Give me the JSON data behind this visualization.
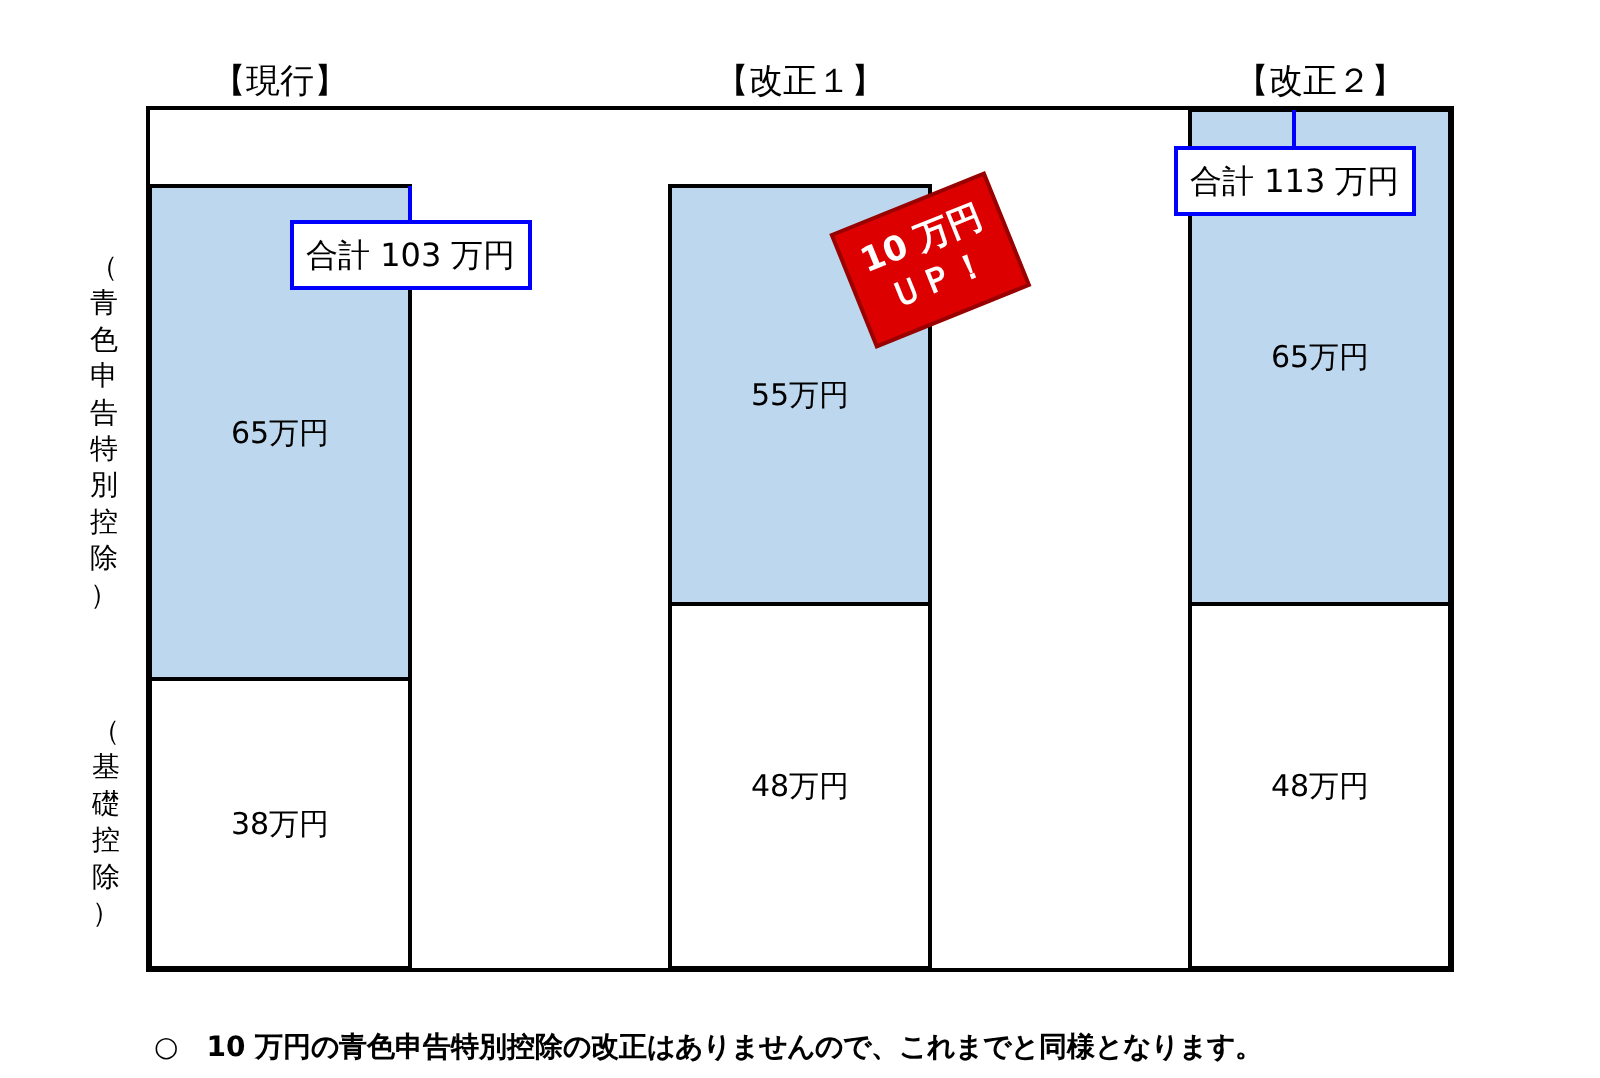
{
  "chart_data": {
    "type": "bar",
    "stacked": true,
    "categories": [
      "【現行】",
      "【改正１】",
      "【改正２】"
    ],
    "series": [
      {
        "name": "（基礎控除）",
        "color": "#ffffff",
        "values": [
          38,
          48,
          48
        ],
        "value_labels": [
          "38万円",
          "48万円",
          "48万円"
        ]
      },
      {
        "name": "（青色申告特別控除）",
        "color": "#bdd7ee",
        "values": [
          65,
          55,
          65
        ],
        "value_labels": [
          "65万円",
          "55万円",
          "65万円"
        ]
      }
    ],
    "totals": [
      "合計 103 万円",
      null,
      "合計 113 万円"
    ],
    "ylim": [
      0,
      113
    ],
    "tick_labels": "x",
    "legend": false,
    "annotations": [
      "10 万円\nＵＰ！",
      "○　10 万円の青色申告特別控除の改正はありませんので、これまでと同様となります。"
    ]
  }
}
